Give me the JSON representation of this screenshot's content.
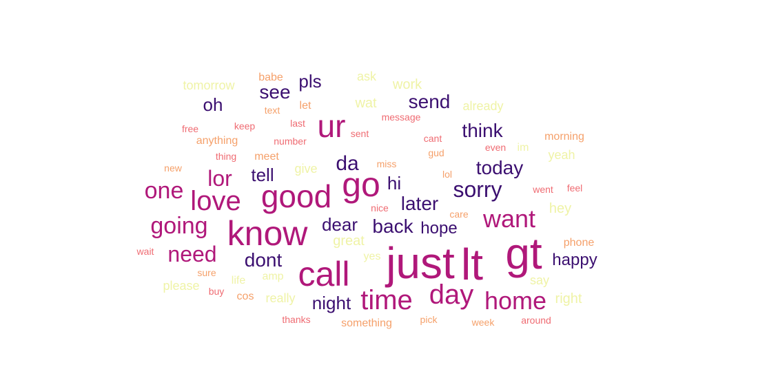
{
  "palette": {
    "dark_purple": "#3b0f70",
    "magenta": "#b0187a",
    "coral": "#ef6b72",
    "orange": "#f5a06a",
    "pale_yellow": "#eff3a6"
  },
  "words": [
    {
      "id": "just",
      "text": "just",
      "color": "#b0187a"
    },
    {
      "id": "lt",
      "text": "lt",
      "color": "#b0187a"
    },
    {
      "id": "gt",
      "text": "gt",
      "color": "#b0187a"
    },
    {
      "id": "call",
      "text": "call",
      "color": "#b0187a"
    },
    {
      "id": "know",
      "text": "know",
      "color": "#b0187a"
    },
    {
      "id": "good",
      "text": "good",
      "color": "#b0187a"
    },
    {
      "id": "go",
      "text": "go",
      "color": "#b0187a"
    },
    {
      "id": "ur",
      "text": "ur",
      "color": "#b0187a"
    },
    {
      "id": "time",
      "text": "time",
      "color": "#b0187a"
    },
    {
      "id": "day",
      "text": "day",
      "color": "#b0187a"
    },
    {
      "id": "love",
      "text": "love",
      "color": "#b0187a"
    },
    {
      "id": "home",
      "text": "home",
      "color": "#b0187a"
    },
    {
      "id": "want",
      "text": "want",
      "color": "#b0187a"
    },
    {
      "id": "one",
      "text": "one",
      "color": "#b0187a"
    },
    {
      "id": "going",
      "text": "going",
      "color": "#b0187a"
    },
    {
      "id": "need",
      "text": "need",
      "color": "#b0187a"
    },
    {
      "id": "lor",
      "text": "lor",
      "color": "#b0187a"
    },
    {
      "id": "sorry",
      "text": "sorry",
      "color": "#3b0f70"
    },
    {
      "id": "today",
      "text": "today",
      "color": "#3b0f70"
    },
    {
      "id": "think",
      "text": "think",
      "color": "#3b0f70"
    },
    {
      "id": "send",
      "text": "send",
      "color": "#3b0f70"
    },
    {
      "id": "see",
      "text": "see",
      "color": "#3b0f70"
    },
    {
      "id": "pls",
      "text": "pls",
      "color": "#3b0f70"
    },
    {
      "id": "oh",
      "text": "oh",
      "color": "#3b0f70"
    },
    {
      "id": "da",
      "text": "da",
      "color": "#3b0f70"
    },
    {
      "id": "tell",
      "text": "tell",
      "color": "#3b0f70"
    },
    {
      "id": "hi",
      "text": "hi",
      "color": "#3b0f70"
    },
    {
      "id": "later",
      "text": "later",
      "color": "#3b0f70"
    },
    {
      "id": "dear",
      "text": "dear",
      "color": "#3b0f70"
    },
    {
      "id": "back",
      "text": "back",
      "color": "#3b0f70"
    },
    {
      "id": "hope",
      "text": "hope",
      "color": "#3b0f70"
    },
    {
      "id": "dont",
      "text": "dont",
      "color": "#3b0f70"
    },
    {
      "id": "night",
      "text": "night",
      "color": "#3b0f70"
    },
    {
      "id": "happy",
      "text": "happy",
      "color": "#3b0f70"
    },
    {
      "id": "tomorrow",
      "text": "tomorrow",
      "color": "#eff3a6"
    },
    {
      "id": "babe",
      "text": "babe",
      "color": "#f5a06a"
    },
    {
      "id": "ask",
      "text": "ask",
      "color": "#eff3a6"
    },
    {
      "id": "work",
      "text": "work",
      "color": "#eff3a6"
    },
    {
      "id": "text",
      "text": "text",
      "color": "#f5a06a"
    },
    {
      "id": "let",
      "text": "let",
      "color": "#f5a06a"
    },
    {
      "id": "wat",
      "text": "wat",
      "color": "#eff3a6"
    },
    {
      "id": "message",
      "text": "message",
      "color": "#ef6b72"
    },
    {
      "id": "already",
      "text": "already",
      "color": "#eff3a6"
    },
    {
      "id": "free",
      "text": "free",
      "color": "#ef6b72"
    },
    {
      "id": "keep",
      "text": "keep",
      "color": "#ef6b72"
    },
    {
      "id": "last",
      "text": "last",
      "color": "#ef6b72"
    },
    {
      "id": "sent",
      "text": "sent",
      "color": "#ef6b72"
    },
    {
      "id": "anything",
      "text": "anything",
      "color": "#f5a06a"
    },
    {
      "id": "number",
      "text": "number",
      "color": "#ef6b72"
    },
    {
      "id": "cant",
      "text": "cant",
      "color": "#ef6b72"
    },
    {
      "id": "morning",
      "text": "morning",
      "color": "#f5a06a"
    },
    {
      "id": "gud",
      "text": "gud",
      "color": "#f5a06a"
    },
    {
      "id": "even",
      "text": "even",
      "color": "#ef6b72"
    },
    {
      "id": "im",
      "text": "im",
      "color": "#eff3a6"
    },
    {
      "id": "thing",
      "text": "thing",
      "color": "#ef6b72"
    },
    {
      "id": "meet",
      "text": "meet",
      "color": "#f5a06a"
    },
    {
      "id": "yeah",
      "text": "yeah",
      "color": "#eff3a6"
    },
    {
      "id": "new",
      "text": "new",
      "color": "#f5a06a"
    },
    {
      "id": "give",
      "text": "give",
      "color": "#eff3a6"
    },
    {
      "id": "miss",
      "text": "miss",
      "color": "#f5a06a"
    },
    {
      "id": "lol",
      "text": "lol",
      "color": "#f5a06a"
    },
    {
      "id": "went",
      "text": "went",
      "color": "#ef6b72"
    },
    {
      "id": "feel",
      "text": "feel",
      "color": "#ef6b72"
    },
    {
      "id": "hey",
      "text": "hey",
      "color": "#eff3a6"
    },
    {
      "id": "nice",
      "text": "nice",
      "color": "#ef6b72"
    },
    {
      "id": "care",
      "text": "care",
      "color": "#f5a06a"
    },
    {
      "id": "great",
      "text": "great",
      "color": "#eff3a6"
    },
    {
      "id": "phone",
      "text": "phone",
      "color": "#f5a06a"
    },
    {
      "id": "wait",
      "text": "wait",
      "color": "#ef6b72"
    },
    {
      "id": "yes",
      "text": "yes",
      "color": "#eff3a6"
    },
    {
      "id": "sure",
      "text": "sure",
      "color": "#f5a06a"
    },
    {
      "id": "amp",
      "text": "amp",
      "color": "#eff3a6"
    },
    {
      "id": "life",
      "text": "life",
      "color": "#eff3a6"
    },
    {
      "id": "please",
      "text": "please",
      "color": "#eff3a6"
    },
    {
      "id": "say",
      "text": "say",
      "color": "#eff3a6"
    },
    {
      "id": "buy",
      "text": "buy",
      "color": "#ef6b72"
    },
    {
      "id": "cos",
      "text": "cos",
      "color": "#f5a06a"
    },
    {
      "id": "really",
      "text": "really",
      "color": "#eff3a6"
    },
    {
      "id": "right",
      "text": "right",
      "color": "#eff3a6"
    },
    {
      "id": "thanks",
      "text": "thanks",
      "color": "#ef6b72"
    },
    {
      "id": "something",
      "text": "something",
      "color": "#f5a06a"
    },
    {
      "id": "pick",
      "text": "pick",
      "color": "#f5a06a"
    },
    {
      "id": "week",
      "text": "week",
      "color": "#f5a06a"
    },
    {
      "id": "around",
      "text": "around",
      "color": "#ef6b72"
    }
  ]
}
